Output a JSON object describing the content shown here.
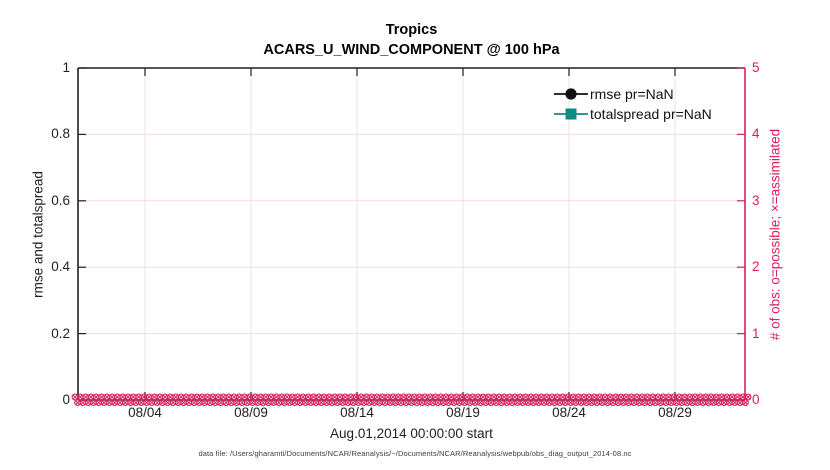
{
  "title": {
    "line1": "Tropics",
    "line2": "ACARS_U_WIND_COMPONENT @ 100 hPa"
  },
  "left_axis": {
    "label": "rmse and totalspread",
    "ticks": [
      "0",
      "0.2",
      "0.4",
      "0.6",
      "0.8",
      "1"
    ],
    "range": [
      0,
      1
    ]
  },
  "right_axis": {
    "label": "# of obs: o=possible; ×=assimilated",
    "ticks": [
      "0",
      "1",
      "2",
      "3",
      "4",
      "5"
    ],
    "range": [
      0,
      5
    ]
  },
  "x_axis": {
    "label": "Aug.01,2014 00:00:00 start",
    "ticks": [
      "08/04",
      "08/09",
      "08/14",
      "08/19",
      "08/24",
      "08/29"
    ]
  },
  "legend": {
    "entries": [
      {
        "label": "rmse pr=NaN",
        "marker": "circle-marker",
        "color": "#111111"
      },
      {
        "label": "totalspread pr=NaN",
        "marker": "square-marker",
        "color": "#0E8B84"
      }
    ]
  },
  "footer": {
    "data_file": "data file: /Users/gharamti/Documents/NCAR/Reanalysis/~/Documents/NCAR/Reanalysis/webpub/obs_diag_output_2014-08.nc"
  },
  "colors": {
    "pink": "#DC1C5E",
    "teal": "#0E8B84",
    "axis_dark": "#1F1F1F",
    "grid_horizontal": "#F8D8E2",
    "grid_vertical": "#E9E2E6"
  },
  "chart_data": {
    "type": "line",
    "title": "Tropics",
    "subtitle": "ACARS_U_WIND_COMPONENT @ 100 hPa",
    "xlabel": "Aug.01,2014 00:00:00 start",
    "ylabel_left": "rmse and totalspread",
    "ylabel_right": "# of obs: o=possible; ×=assimilated",
    "ylim_left": [
      0,
      1
    ],
    "ylim_right": [
      0,
      5
    ],
    "x_tick_labels": [
      "08/04",
      "08/09",
      "08/14",
      "08/19",
      "08/24",
      "08/29"
    ],
    "x_range": "Aug 01 2014 00:00 to Aug 31 2014, 6-hourly bins",
    "grid": true,
    "legend_position": "upper right",
    "series": [
      {
        "name": "rmse pr=NaN",
        "axis": "left",
        "marker": "filled-circle",
        "color": "#111111",
        "values": "all NaN (nothing plotted)"
      },
      {
        "name": "totalspread pr=NaN",
        "axis": "left",
        "marker": "filled-square",
        "color": "#0E8B84",
        "values": "all NaN (nothing plotted)"
      },
      {
        "name": "# of obs possible (o)",
        "axis": "right",
        "marker": "o",
        "color": "#DC1C5E",
        "constant_value": 0,
        "n_points": 124
      },
      {
        "name": "# of obs assimilated (×)",
        "axis": "right",
        "marker": "x",
        "color": "#DC1C5E",
        "constant_value": 0,
        "n_points": 124
      }
    ]
  }
}
